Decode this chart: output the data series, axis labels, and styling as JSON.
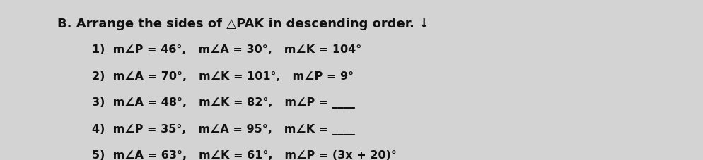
{
  "background_color": "#d3d3d3",
  "title_bold": "B. Arrange the sides of ",
  "title_triangle": "△PAK",
  "title_rest": "in descending order. ↓",
  "lines": [
    "1)  m∠P = 46°,   m∠A = 30°,   m∠K = 104°",
    "2)  m∠A = 70°,   m∠K = 101°,   m∠P = 9°",
    "3)  m∠A = 48°,   m∠K = 82°,   m∠P = ____",
    "4)  m∠P = 35°,   m∠A = 95°,   m∠K = ____",
    "5)  m∠A = 63°,   m∠K = 61°,   m∠P = (3x + 20)°"
  ],
  "title_fontsize": 13,
  "line_fontsize": 11.5,
  "text_color": "#111111",
  "font_family": "DejaVu Sans"
}
